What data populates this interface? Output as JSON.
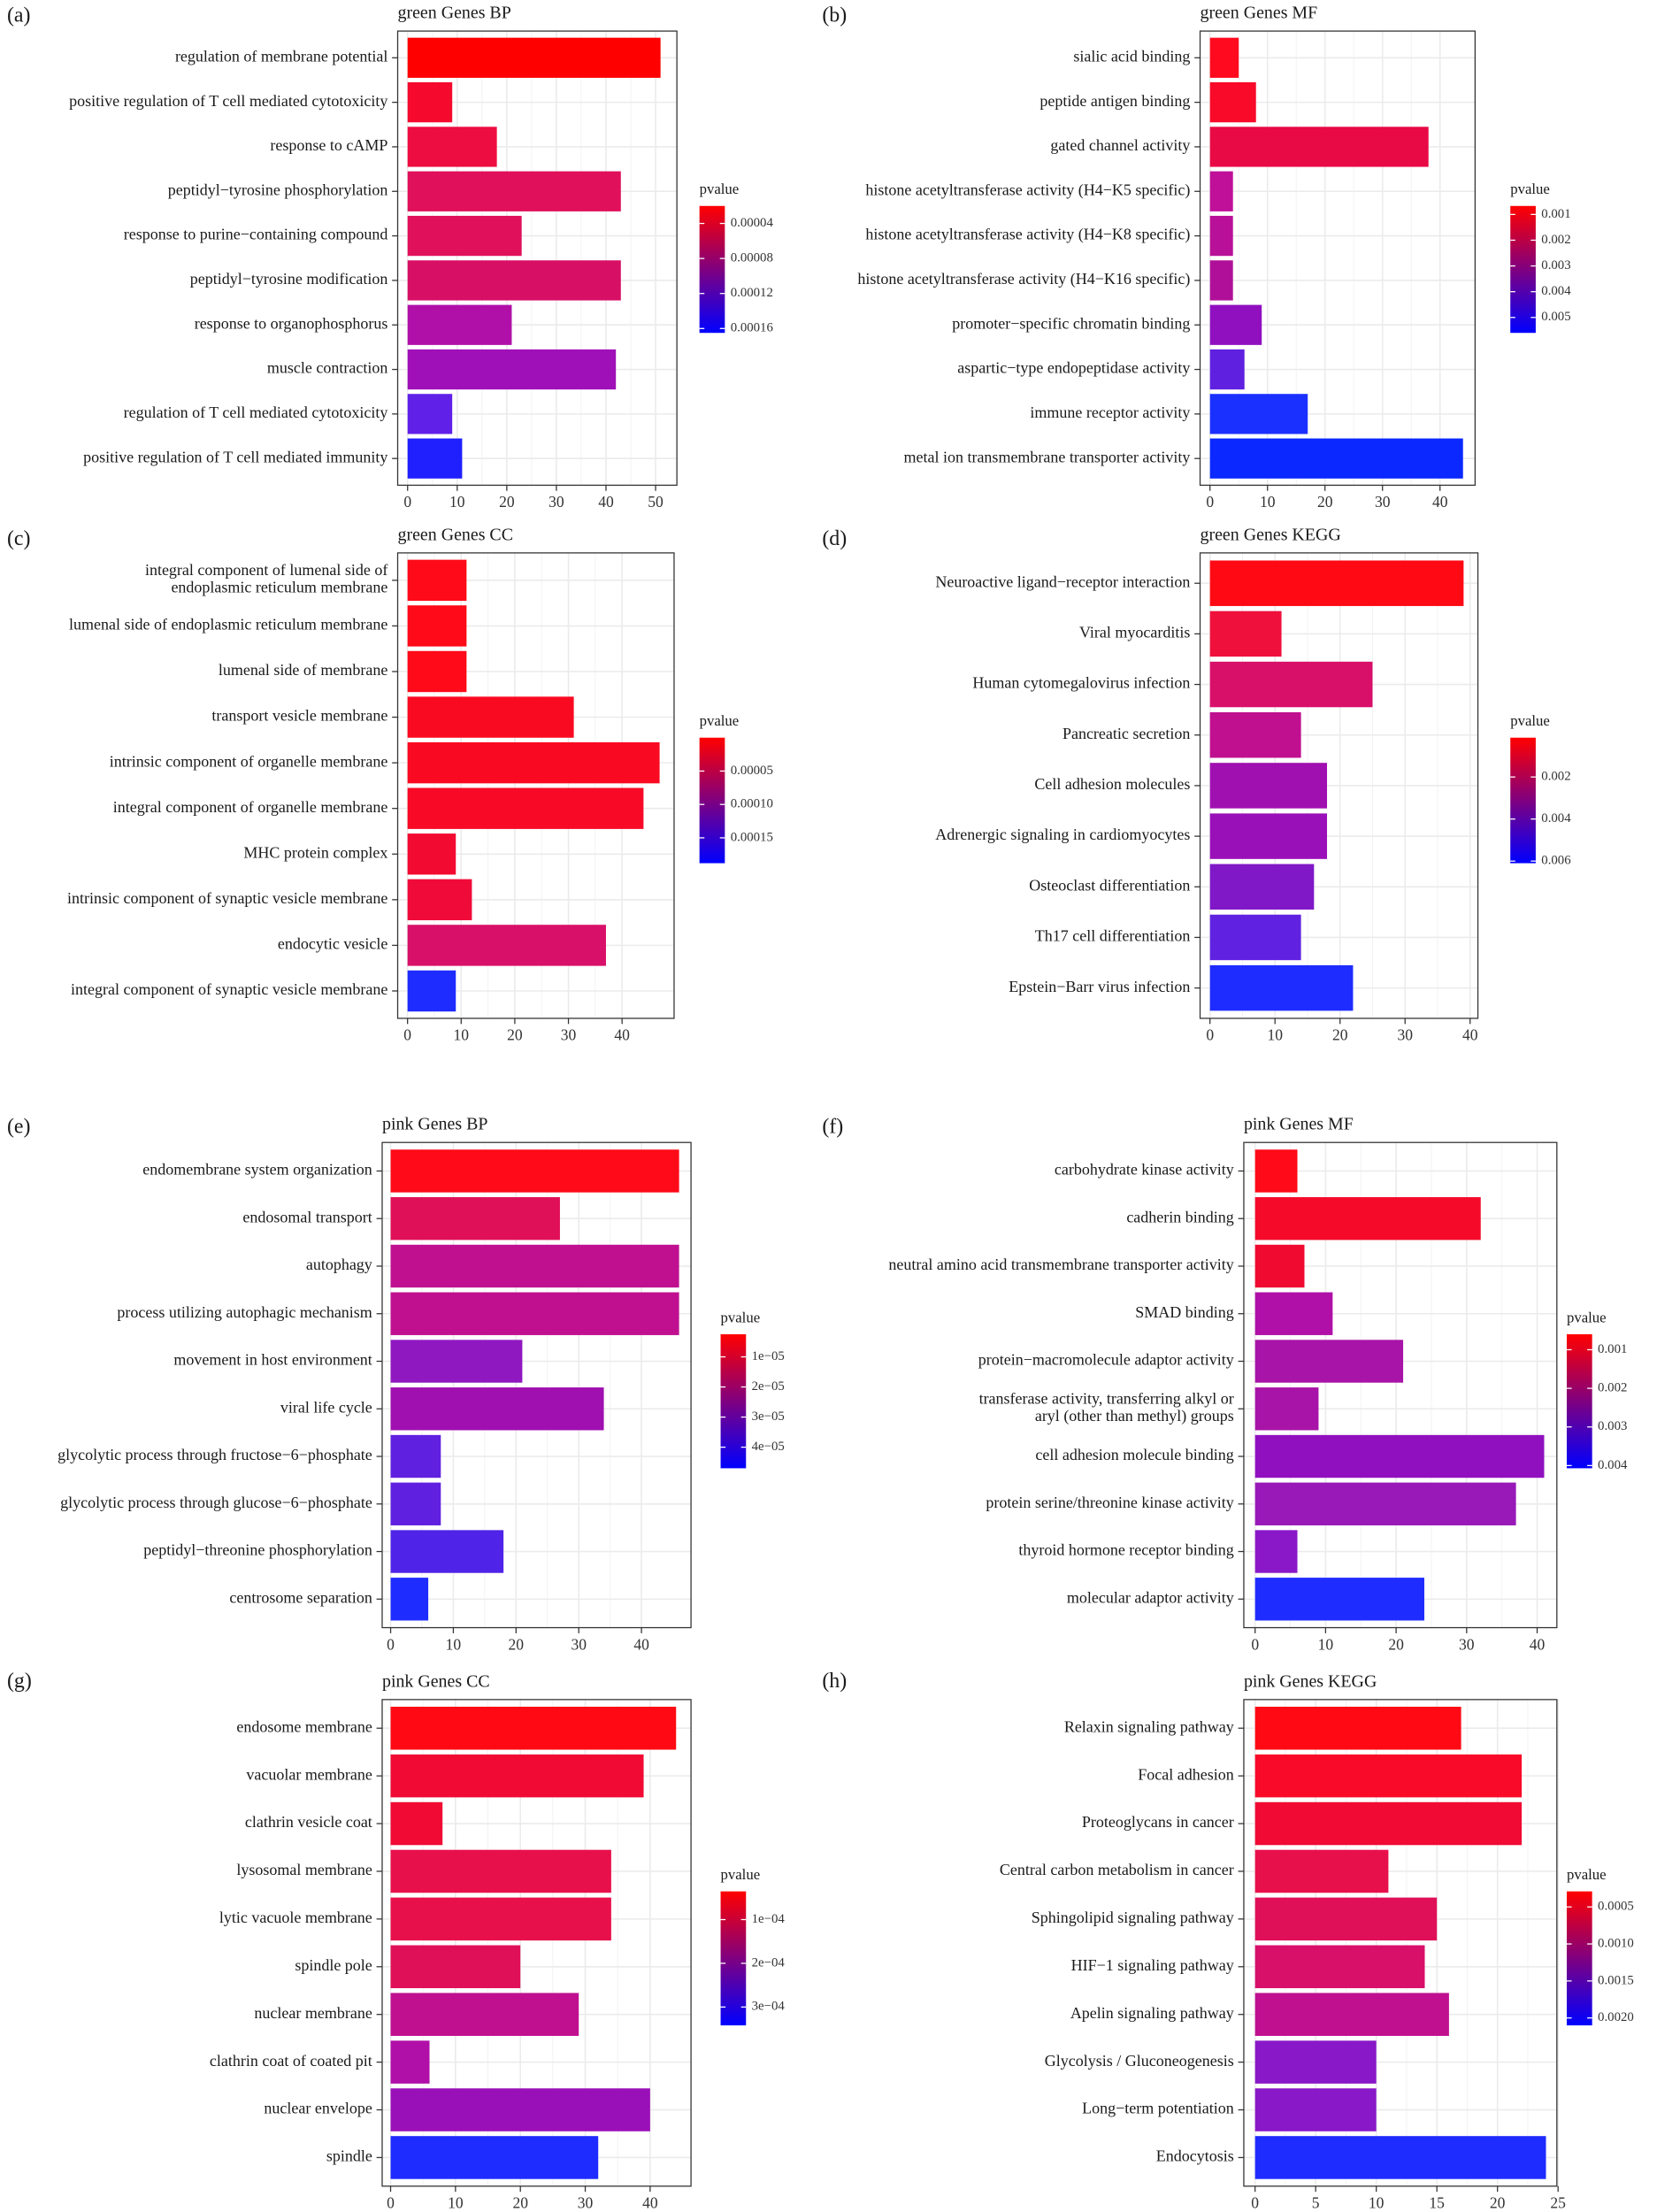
{
  "chart_data": [
    {
      "type": "bar",
      "orientation": "horizontal",
      "panel": "(a)",
      "title": "green Genes BP",
      "categories": [
        "regulation of membrane potential",
        "positive regulation of T cell mediated cytotoxicity",
        "response to cAMP",
        "peptidyl−tyrosine phosphorylation",
        "response to purine−containing compound",
        "peptidyl−tyrosine modification",
        "response to organophosphorus",
        "muscle contraction",
        "regulation of T cell mediated cytotoxicity",
        "positive regulation of T cell mediated immunity"
      ],
      "values": [
        51,
        9,
        18,
        43,
        23,
        43,
        21,
        42,
        9,
        11
      ],
      "colors": [
        "#ff0000",
        "#f50a2e",
        "#ee0d40",
        "#e0105a",
        "#e0105a",
        "#d81065",
        "#b010a8",
        "#a010b8",
        "#6020e8",
        "#2020ff"
      ],
      "xlim": [
        -2,
        54.3
      ],
      "xticks": [
        0,
        10,
        20,
        30,
        40,
        50
      ],
      "grid": true,
      "legend": {
        "title": "pvalue",
        "clim": [
          2e-05,
          0.000165
        ],
        "colors": [
          "#ff0000",
          "#0000ff"
        ],
        "ticks": [
          4e-05,
          8e-05,
          0.00012,
          0.00016
        ]
      }
    },
    {
      "type": "bar",
      "orientation": "horizontal",
      "panel": "(b)",
      "title": "green Genes MF",
      "categories": [
        "sialic acid binding",
        "peptide antigen binding",
        "gated channel activity",
        "histone acetyltransferase activity (H4−K5 specific)",
        "histone acetyltransferase activity (H4−K8 specific)",
        "histone acetyltransferase activity (H4−K16 specific)",
        "promoter−specific chromatin binding",
        "aspartic−type endopeptidase activity",
        "immune receptor activity",
        "metal ion transmembrane transporter activity"
      ],
      "values": [
        5,
        8,
        38,
        4,
        4,
        4,
        9,
        6,
        17,
        44
      ],
      "colors": [
        "#ff0a1e",
        "#f80a28",
        "#e80a45",
        "#c0109a",
        "#b81098",
        "#b01099",
        "#9010c0",
        "#6020e0",
        "#1a30ff",
        "#0a28ff"
      ],
      "xlim": [
        -1.72,
        46.1
      ],
      "xticks": [
        0,
        10,
        20,
        30,
        40
      ],
      "grid": true,
      "legend": {
        "title": "pvalue",
        "clim": [
          0.00067,
          0.0056
        ],
        "colors": [
          "#ff0000",
          "#0000ff"
        ],
        "ticks": [
          0.001,
          0.002,
          0.003,
          0.004,
          0.005
        ]
      }
    },
    {
      "type": "bar",
      "orientation": "horizontal",
      "panel": "(c)",
      "title": "green Genes CC",
      "categories": [
        "integral component of lumenal side of\nendoplasmic reticulum membrane",
        "lumenal side of endoplasmic reticulum membrane",
        "lumenal side of membrane",
        "transport vesicle membrane",
        "intrinsic component of organelle membrane",
        "integral component of organelle membrane",
        "MHC protein complex",
        "intrinsic component of synaptic vesicle membrane",
        "endocytic vesicle",
        "integral component of synaptic vesicle membrane"
      ],
      "values": [
        11,
        11,
        11,
        31,
        47,
        44,
        9,
        12,
        37,
        9
      ],
      "colors": [
        "#ff0a18",
        "#ff0a18",
        "#ff0a18",
        "#fa0a20",
        "#fa0a22",
        "#f80a26",
        "#f20a30",
        "#f00a3a",
        "#d8106a",
        "#1e2cff"
      ],
      "xlim": [
        -1.84,
        49.7
      ],
      "xticks": [
        0,
        10,
        20,
        30,
        40
      ],
      "grid": true,
      "legend": {
        "title": "pvalue",
        "clim": [
          0,
          0.000188
        ],
        "colors": [
          "#ff0000",
          "#0000ff"
        ],
        "ticks": [
          5e-05,
          {
            "value": 0.0001,
            "label": "0.00010"
          },
          0.00015
        ]
      }
    },
    {
      "type": "bar",
      "orientation": "horizontal",
      "panel": "(d)",
      "title": "green Genes KEGG",
      "categories": [
        "Neuroactive ligand−receptor interaction",
        "Viral myocarditis",
        "Human cytomegalovirus infection",
        "Pancreatic secretion",
        "Cell adhesion molecules",
        "Adrenergic signaling in cardiomyocytes",
        "Osteoclast differentiation",
        "Th17 cell differentiation",
        "Epstein−Barr virus infection"
      ],
      "values": [
        39,
        11,
        25,
        14,
        18,
        18,
        16,
        14,
        22
      ],
      "colors": [
        "#ff0a14",
        "#f0103c",
        "#d8106a",
        "#c01090",
        "#a010b0",
        "#9a10b8",
        "#8018c8",
        "#6022e0",
        "#1e2cff"
      ],
      "xlim": [
        -1.52,
        41.2
      ],
      "xticks": [
        0,
        10,
        20,
        30,
        40
      ],
      "grid": true,
      "legend": {
        "title": "pvalue",
        "clim": [
          0.00013,
          0.0061
        ],
        "colors": [
          "#ff0000",
          "#0000ff"
        ],
        "ticks": [
          0.002,
          0.004,
          0.006
        ]
      }
    },
    {
      "type": "bar",
      "orientation": "horizontal",
      "panel": "(e)",
      "title": "pink Genes BP",
      "categories": [
        "endomembrane system organization",
        "endosomal transport",
        "autophagy",
        "process utilizing autophagic mechanism",
        "movement in host environment",
        "viral life cycle",
        "glycolytic process through fructose−6−phosphate",
        "glycolytic process through glucose−6−phosphate",
        "peptidyl−threonine phosphorylation",
        "centrosome separation"
      ],
      "values": [
        46,
        27,
        46,
        46,
        21,
        34,
        8,
        8,
        18,
        6
      ],
      "colors": [
        "#ff0a18",
        "#e01058",
        "#c01090",
        "#c01090",
        "#9018c0",
        "#a010b0",
        "#6020e0",
        "#6020e0",
        "#5024e8",
        "#1e2cff"
      ],
      "xlim": [
        -1.35,
        47.9
      ],
      "xticks": [
        0,
        10,
        20,
        30,
        40
      ],
      "grid": true,
      "legend": {
        "title": "pvalue",
        "clim": [
          2.5e-06,
          4.7e-05
        ],
        "colors": [
          "#ff0000",
          "#0000ff"
        ],
        "ticks": [
          {
            "value": 1e-05,
            "label": "1e−05"
          },
          {
            "value": 2e-05,
            "label": "2e−05"
          },
          {
            "value": 3e-05,
            "label": "3e−05"
          },
          {
            "value": 4e-05,
            "label": "4e−05"
          }
        ]
      }
    },
    {
      "type": "bar",
      "orientation": "horizontal",
      "panel": "(f)",
      "title": "pink Genes MF",
      "categories": [
        "carbohydrate kinase activity",
        "cadherin binding",
        "neutral amino acid transmembrane transporter activity",
        "SMAD binding",
        "protein−macromolecule adaptor activity",
        "transferase activity, transferring alkyl or\naryl (other than methyl) groups",
        "cell adhesion molecule binding",
        "protein serine/threonine kinase activity",
        "thyroid hormone receptor binding",
        "molecular adaptor activity"
      ],
      "values": [
        6,
        32,
        7,
        11,
        21,
        9,
        41,
        37,
        6,
        24
      ],
      "colors": [
        "#ff0a18",
        "#f50a2a",
        "#f00a30",
        "#b010a8",
        "#a814a8",
        "#a814a8",
        "#9010c0",
        "#9818b8",
        "#8a18c8",
        "#1e2cff"
      ],
      "xlim": [
        -1.6,
        42.8
      ],
      "xticks": [
        0,
        10,
        20,
        30,
        40
      ],
      "grid": true,
      "legend": {
        "title": "pvalue",
        "clim": [
          0.0006,
          0.00407
        ],
        "colors": [
          "#ff0000",
          "#0000ff"
        ],
        "ticks": [
          0.001,
          0.002,
          0.003,
          0.004
        ]
      }
    },
    {
      "type": "bar",
      "orientation": "horizontal",
      "panel": "(g)",
      "title": "pink Genes CC",
      "categories": [
        "endosome membrane",
        "vacuolar membrane",
        "clathrin vesicle coat",
        "lysosomal membrane",
        "lytic vacuole membrane",
        "spindle pole",
        "nuclear membrane",
        "clathrin coat of coated pit",
        "nuclear envelope",
        "spindle"
      ],
      "values": [
        44,
        39,
        8,
        34,
        34,
        20,
        29,
        6,
        40,
        32
      ],
      "colors": [
        "#ff0a14",
        "#f00a34",
        "#f00a34",
        "#e8104a",
        "#e8104a",
        "#e01058",
        "#c01090",
        "#b010a8",
        "#9a10b8",
        "#1e2cff"
      ],
      "xlim": [
        -1.3,
        46.3
      ],
      "xticks": [
        0,
        10,
        20,
        30,
        40
      ],
      "grid": true,
      "legend": {
        "title": "pvalue",
        "clim": [
          3.55e-05,
          0.000342
        ],
        "colors": [
          "#ff0000",
          "#0000ff"
        ],
        "ticks": [
          {
            "value": 0.0001,
            "label": "1e−04"
          },
          {
            "value": 0.0002,
            "label": "2e−04"
          },
          {
            "value": 0.0003,
            "label": "3e−04"
          }
        ]
      }
    },
    {
      "type": "bar",
      "orientation": "horizontal",
      "panel": "(h)",
      "title": "pink Genes KEGG",
      "categories": [
        "Relaxin signaling pathway",
        "Focal adhesion",
        "Proteoglycans in cancer",
        "Central carbon metabolism in cancer",
        "Sphingolipid signaling pathway",
        "HIF−1 signaling pathway",
        "Apelin signaling pathway",
        "Glycolysis / Gluconeogenesis",
        "Long−term potentiation",
        "Endocytosis"
      ],
      "values": [
        17,
        22,
        22,
        11,
        15,
        14,
        16,
        10,
        10,
        24
      ],
      "colors": [
        "#ff0a14",
        "#f80a28",
        "#f00a34",
        "#e8104a",
        "#e01058",
        "#d8106a",
        "#c01090",
        "#8818c8",
        "#8818c8",
        "#1e2cff"
      ],
      "xlim": [
        -0.93,
        24.9
      ],
      "xticks": [
        0,
        5,
        10,
        15,
        20,
        25
      ],
      "grid": true,
      "legend": {
        "title": "pvalue",
        "clim": [
          0.00029,
          0.0021
        ],
        "colors": [
          "#ff0000",
          "#0000ff"
        ],
        "ticks": [
          0.0005,
          {
            "value": 0.001,
            "label": "0.0010"
          },
          0.0015,
          {
            "value": 0.002,
            "label": "0.0020"
          }
        ]
      }
    }
  ]
}
